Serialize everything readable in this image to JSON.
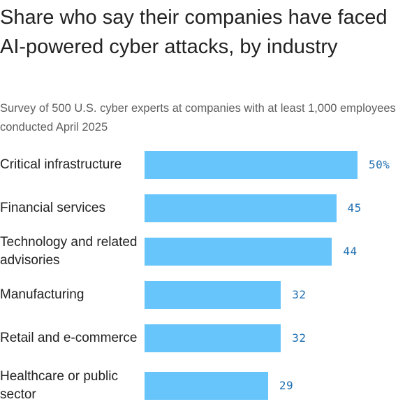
{
  "title": "Share who say their companies have faced AI-powered cyber attacks, by industry",
  "subtitle": "Survey of 500 U.S. cyber experts at companies with at least 1,000 employees conducted April 2025",
  "colors": {
    "bar": "#68c5fb",
    "value_label": "#1f6fb0",
    "title": "#222222",
    "subtitle": "#5f5f5f"
  },
  "chart_data": {
    "type": "bar",
    "orientation": "horizontal",
    "title": "Share who say their companies have faced AI-powered cyber attacks, by industry",
    "subtitle": "Survey of 500 U.S. cyber experts at companies with at least 1,000 employees conducted April 2025",
    "xlabel": "",
    "ylabel": "",
    "categories": [
      "Critical infrastructure",
      "Financial services",
      "Technology and related advisories",
      "Manufacturing",
      "Retail and e-commerce",
      "Healthcare or public sector"
    ],
    "values": [
      50,
      45,
      44,
      32,
      32,
      29
    ],
    "value_labels": [
      "50%",
      "45",
      "44",
      "32",
      "32",
      "29"
    ],
    "unit": "%",
    "xlim": [
      0,
      50
    ],
    "grid": false,
    "legend": "none"
  }
}
